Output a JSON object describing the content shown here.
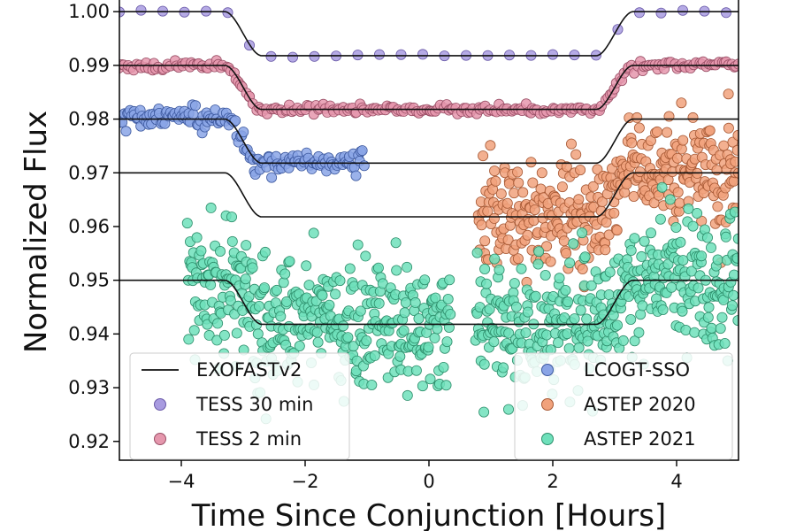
{
  "chart_data": {
    "type": "scatter",
    "xlabel": "Time Since Conjunction [Hours]",
    "ylabel": "Normalized Flux",
    "xlim": [
      -5,
      5
    ],
    "ylim": [
      0.9165,
      1.0025
    ],
    "xticks": [
      -4,
      -2,
      0,
      2,
      4
    ],
    "xtick_labels": [
      "−4",
      "−2",
      "0",
      "2",
      "4"
    ],
    "yticks": [
      0.92,
      0.93,
      0.94,
      0.95,
      0.96,
      0.97,
      0.98,
      0.99,
      1.0
    ],
    "ytick_labels": [
      "0.92",
      "0.93",
      "0.94",
      "0.95",
      "0.96",
      "0.97",
      "0.98",
      "0.99",
      "1.00"
    ],
    "grid": false,
    "model": {
      "name": "EXOFASTv2",
      "color": "#111111",
      "depth": 0.0082,
      "ingress_start": -3.3,
      "ingress_end": -2.7,
      "egress_start": 2.7,
      "egress_end": 3.3,
      "curves": [
        {
          "baseline": 1.0,
          "x_range": [
            -5,
            5
          ]
        },
        {
          "baseline": 0.99,
          "x_range": [
            -5,
            5
          ]
        },
        {
          "baseline": 0.98,
          "x_range": [
            -5,
            5
          ]
        },
        {
          "baseline": 0.97,
          "x_range": [
            -5,
            5
          ]
        },
        {
          "baseline": 0.95,
          "x_range": [
            -5,
            5
          ]
        }
      ]
    },
    "series": [
      {
        "name": "TESS 30 min",
        "color": "#a89be0",
        "edge": "#6a5aa8",
        "baseline": 1.0,
        "x_range": [
          -5,
          5
        ],
        "step": 0.35,
        "noise": 0.0002,
        "seed": 11
      },
      {
        "name": "TESS 2 min",
        "color": "#e597ad",
        "edge": "#9a4f66",
        "baseline": 0.99,
        "x_range": [
          -5,
          5
        ],
        "step": 0.04,
        "noise": 0.0004,
        "seed": 23
      },
      {
        "name": "LCOGT-SSO",
        "color": "#8aa4e6",
        "edge": "#3e5aa0",
        "baseline": 0.98,
        "x_range": [
          -5,
          -1.05
        ],
        "step": 0.025,
        "noise": 0.0011,
        "seed": 37
      },
      {
        "name": "ASTEP 2020",
        "color": "#f1a27c",
        "edge": "#a85a36",
        "baseline": 0.97,
        "x_range": [
          0.8,
          5
        ],
        "step": 0.012,
        "noise": 0.0052,
        "seed": 41
      },
      {
        "name": "ASTEP 2021",
        "color": "#6fe0bb",
        "edge": "#2e8f6c",
        "baseline": 0.95,
        "x_range": [
          -3.9,
          5
        ],
        "step": 0.011,
        "noise": 0.0062,
        "seed": 53
      }
    ],
    "legends": [
      {
        "placement": "bottom-left",
        "entries": [
          "EXOFASTv2",
          "TESS 30 min",
          "TESS 2 min"
        ]
      },
      {
        "placement": "bottom-right",
        "entries": [
          "LCOGT-SSO",
          "ASTEP 2020",
          "ASTEP 2021"
        ]
      }
    ]
  }
}
